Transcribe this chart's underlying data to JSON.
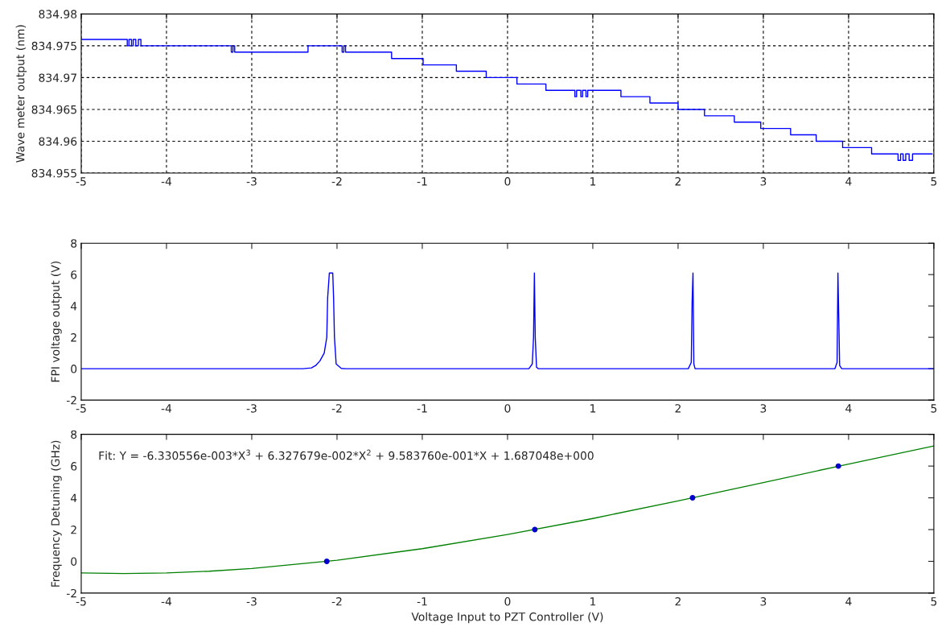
{
  "chart_data": [
    {
      "type": "step",
      "ylabel": "Wave meter output (nm)",
      "xlim": [
        -5,
        5
      ],
      "xticks": [
        -5,
        -4,
        -3,
        -2,
        -1,
        0,
        1,
        2,
        3,
        4,
        5
      ],
      "ylim": [
        834.955,
        834.98
      ],
      "yticks": [
        834.955,
        834.96,
        834.965,
        834.97,
        834.975,
        834.98
      ],
      "grid": true,
      "series": [
        {
          "color": "#0000ff",
          "x": [
            -5,
            -4.46,
            -4.44,
            -4.41,
            -4.39,
            -4.36,
            -4.33,
            -4.3,
            -3.24,
            -3.22,
            -3.2,
            -2.34,
            -1.94,
            -1.92,
            -1.9,
            -1.88,
            -1.36,
            -0.99,
            -0.6,
            -0.25,
            0.11,
            0.45,
            0.79,
            0.81,
            0.86,
            0.88,
            0.92,
            0.94,
            1.33,
            1.67,
            2.0,
            2.31,
            2.33,
            2.66,
            2.97,
            2.99,
            3.32,
            3.62,
            3.64,
            3.93,
            4.27,
            4.29,
            4.58,
            4.61,
            4.64,
            4.67,
            4.71,
            4.75,
            4.98
          ],
          "values": [
            834.976,
            834.975,
            834.976,
            834.975,
            834.976,
            834.975,
            834.976,
            834.975,
            834.974,
            834.975,
            834.974,
            834.975,
            834.974,
            834.975,
            834.974,
            834.974,
            834.973,
            834.972,
            834.971,
            834.97,
            834.969,
            834.968,
            834.967,
            834.968,
            834.967,
            834.968,
            834.967,
            834.968,
            834.967,
            834.966,
            834.965,
            834.964,
            834.964,
            834.963,
            834.962,
            834.962,
            834.961,
            834.96,
            834.96,
            834.959,
            834.958,
            834.958,
            834.957,
            834.958,
            834.957,
            834.958,
            834.957,
            834.958,
            834.958
          ]
        }
      ]
    },
    {
      "type": "line",
      "ylabel": "FPI voltage output (V)",
      "xlim": [
        -5,
        5
      ],
      "xticks": [
        -5,
        -4,
        -3,
        -2,
        -1,
        0,
        1,
        2,
        3,
        4,
        5
      ],
      "ylim": [
        -2,
        8
      ],
      "yticks": [
        -2,
        0,
        2,
        4,
        6,
        8
      ],
      "series": [
        {
          "color": "#0000ff",
          "x": [
            -5,
            -2.4,
            -2.3,
            -2.25,
            -2.2,
            -2.15,
            -2.12,
            -2.11,
            -2.09,
            -2.05,
            -2.04,
            -2.03,
            -2.01,
            -1.95,
            -1.9,
            0.25,
            0.29,
            0.305,
            0.315,
            0.325,
            0.34,
            0.36,
            2.12,
            2.155,
            2.165,
            2.175,
            2.185,
            2.2,
            3.84,
            3.865,
            3.875,
            3.885,
            3.895,
            3.92,
            5
          ],
          "values": [
            0,
            0,
            0.05,
            0.2,
            0.5,
            1.0,
            2.0,
            4.5,
            6.1,
            6.1,
            4.5,
            2.0,
            0.3,
            0.02,
            0,
            0,
            0.3,
            2,
            6.1,
            2,
            0.1,
            0,
            0,
            0.4,
            4.3,
            6.1,
            0.3,
            0,
            0,
            0.4,
            6.1,
            3.2,
            0.2,
            0,
            0
          ]
        }
      ]
    },
    {
      "type": "line",
      "xlabel": "Voltage Input to PZT Controller (V)",
      "ylabel": "Frequency Detuning (GHz)",
      "xlim": [
        -5,
        5
      ],
      "xticks": [
        -5,
        -4,
        -3,
        -2,
        -1,
        0,
        1,
        2,
        3,
        4,
        5
      ],
      "ylim": [
        -2,
        8
      ],
      "yticks": [
        -2,
        0,
        2,
        4,
        6,
        8
      ],
      "annotations": [
        "Fit: Y = -6.330556e-003*X$^{3}$ + 6.327679e-002*X$^{2}$ + 9.583760e-001*X + 1.687048e+000"
      ],
      "series": [
        {
          "type": "line",
          "color": "#008000",
          "x": [
            -5,
            -4.5,
            -4,
            -3.5,
            -3,
            -2,
            -1,
            0,
            1,
            2,
            3,
            4,
            5
          ],
          "values": [
            -0.73,
            -0.77,
            -0.73,
            -0.62,
            -0.45,
            0.07,
            0.8,
            1.69,
            2.7,
            3.81,
            4.96,
            6.13,
            7.27
          ]
        },
        {
          "type": "scatter",
          "color": "#0000cc",
          "marker": "circle",
          "x": [
            -2.12,
            0.32,
            2.17,
            3.88
          ],
          "values": [
            0.0,
            2.0,
            4.0,
            6.0
          ]
        }
      ]
    }
  ]
}
